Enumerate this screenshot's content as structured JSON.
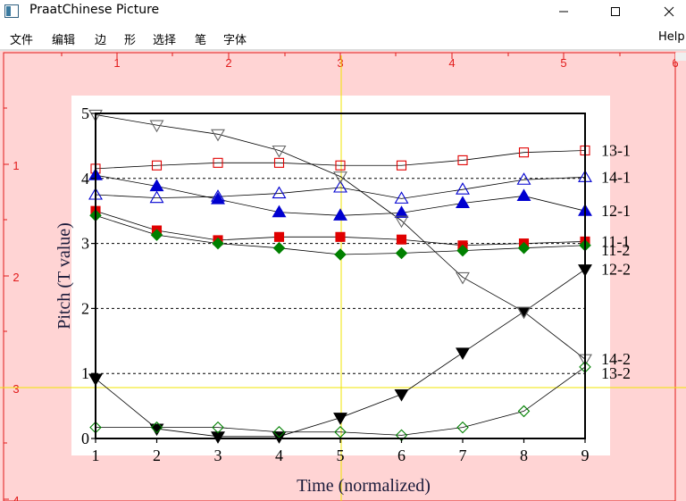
{
  "window": {
    "title": "PraatChinese Picture",
    "buttons": {
      "minimize": "—",
      "maximize": "☐",
      "close": "✕"
    }
  },
  "menu": {
    "items": [
      "文件",
      "编辑",
      "边",
      "形",
      "选择",
      "笔",
      "字体"
    ],
    "help": "Help"
  },
  "ruler": {
    "top_ticks": [
      "1",
      "2",
      "3",
      "4",
      "5",
      "6"
    ],
    "left_ticks": [
      "1",
      "2",
      "3",
      "4"
    ],
    "color": "#e21a1a"
  },
  "colors": {
    "canvas_bg": "#ffd4d4",
    "plot_bg": "#ffffff",
    "guide": "#f0e600",
    "red": "#e00000",
    "blue": "#0000d0",
    "green": "#008000",
    "gray": "#666666"
  },
  "chart_data": {
    "type": "line",
    "xlabel": "Time (normalized)",
    "ylabel": "Pitch (T value)",
    "x": [
      1,
      2,
      3,
      4,
      5,
      6,
      7,
      8,
      9
    ],
    "xlim": [
      1,
      9
    ],
    "ylim": [
      0,
      5
    ],
    "xticks": [
      "1",
      "2",
      "3",
      "4",
      "5",
      "6",
      "7",
      "8",
      "9"
    ],
    "yticks": [
      "0",
      "1",
      "2",
      "3",
      "4",
      "5"
    ],
    "dashed_gridlines_y": [
      1,
      2,
      3,
      4
    ],
    "series": [
      {
        "name": "13-1",
        "marker": "square-open",
        "color": "#e00000",
        "values": [
          4.15,
          4.2,
          4.24,
          4.24,
          4.2,
          4.2,
          4.28,
          4.4,
          4.43
        ]
      },
      {
        "name": "14-1",
        "marker": "triangle-up-open",
        "color": "#0000d0",
        "values": [
          3.75,
          3.7,
          3.72,
          3.77,
          3.86,
          3.69,
          3.83,
          3.98,
          4.02
        ]
      },
      {
        "name": "12-1",
        "marker": "triangle-up-filled",
        "color": "#0000d0",
        "values": [
          4.05,
          3.88,
          3.68,
          3.48,
          3.43,
          3.47,
          3.62,
          3.73,
          3.5
        ]
      },
      {
        "name": "11-1",
        "marker": "square-filled",
        "color": "#e00000",
        "values": [
          3.5,
          3.2,
          3.05,
          3.1,
          3.1,
          3.06,
          2.97,
          3.0,
          3.03
        ]
      },
      {
        "name": "11-2",
        "marker": "diamond-filled",
        "color": "#008000",
        "values": [
          3.43,
          3.13,
          3.0,
          2.93,
          2.83,
          2.85,
          2.89,
          2.93,
          2.97
        ]
      },
      {
        "name": "12-2",
        "marker": "triangle-down-filled",
        "color": "#000000",
        "values": [
          0.92,
          0.15,
          0.03,
          0.03,
          0.32,
          0.68,
          1.32,
          1.95,
          2.6
        ]
      },
      {
        "name": "14-2",
        "marker": "triangle-down-open",
        "color": "#666666",
        "values": [
          4.98,
          4.82,
          4.68,
          4.43,
          4.03,
          3.35,
          2.48,
          1.95,
          1.22
        ]
      },
      {
        "name": "13-2",
        "marker": "diamond-open",
        "color": "#008000",
        "values": [
          0.17,
          0.17,
          0.17,
          0.1,
          0.1,
          0.05,
          0.17,
          0.42,
          1.1
        ]
      }
    ]
  }
}
